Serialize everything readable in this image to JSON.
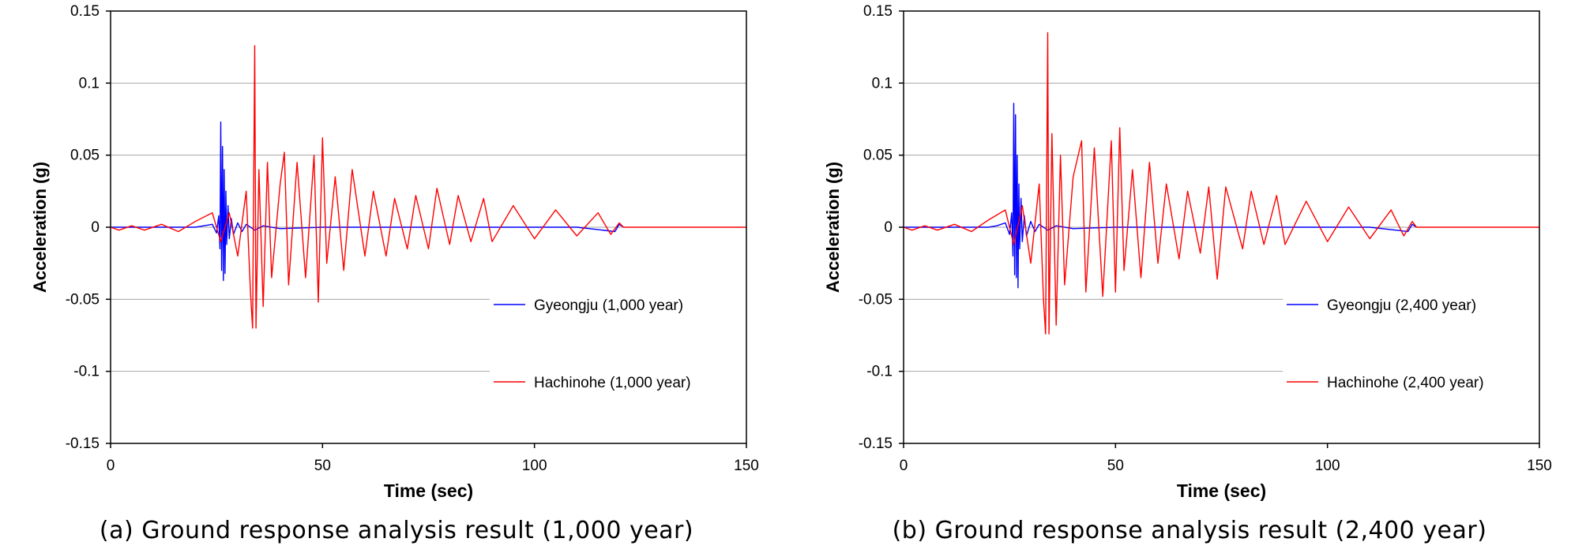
{
  "chart_data": [
    {
      "type": "line",
      "xlabel": "Time (sec)",
      "ylabel": "Acceleration (g)",
      "xlim": [
        0,
        150
      ],
      "ylim": [
        -0.15,
        0.15
      ],
      "x_ticks": [
        "0",
        "50",
        "100",
        "150"
      ],
      "y_ticks": [
        "0.15",
        "0.1",
        "0.05",
        "0",
        "-0.05",
        "-0.1",
        "-0.15"
      ],
      "grid": "horizontal",
      "legend_position": "bottom-right",
      "caption": "(a) Ground response analysis result (1,000 year)",
      "series": [
        {
          "name": "Gyeongju (1,000 year)",
          "color": "#0000ff",
          "points": [
            [
              0,
              0
            ],
            [
              5,
              0
            ],
            [
              10,
              0
            ],
            [
              15,
              0
            ],
            [
              20,
              0
            ],
            [
              22,
              0.001
            ],
            [
              24,
              0.002
            ],
            [
              25,
              -0.004
            ],
            [
              25.5,
              0.008
            ],
            [
              25.8,
              -0.015
            ],
            [
              26,
              0.073
            ],
            [
              26.2,
              -0.03
            ],
            [
              26.4,
              0.056
            ],
            [
              26.6,
              -0.037
            ],
            [
              26.8,
              0.04
            ],
            [
              27,
              -0.032
            ],
            [
              27.2,
              0.025
            ],
            [
              27.4,
              -0.012
            ],
            [
              27.7,
              0.015
            ],
            [
              28,
              -0.008
            ],
            [
              28.5,
              0.006
            ],
            [
              29,
              -0.005
            ],
            [
              30,
              0.003
            ],
            [
              31,
              -0.003
            ],
            [
              32,
              0.002
            ],
            [
              34,
              -0.002
            ],
            [
              36,
              0.001
            ],
            [
              40,
              -0.001
            ],
            [
              50,
              0
            ],
            [
              70,
              0
            ],
            [
              90,
              0
            ],
            [
              110,
              0
            ],
            [
              119,
              -0.003
            ],
            [
              120,
              0.002
            ],
            [
              121,
              0
            ]
          ]
        },
        {
          "name": "Hachinohe (1,000 year)",
          "color": "#ff0000",
          "points": [
            [
              0,
              0
            ],
            [
              2,
              -0.002
            ],
            [
              5,
              0.001
            ],
            [
              8,
              -0.002
            ],
            [
              12,
              0.002
            ],
            [
              16,
              -0.003
            ],
            [
              20,
              0.004
            ],
            [
              24,
              0.01
            ],
            [
              26,
              -0.01
            ],
            [
              28,
              0.01
            ],
            [
              30,
              -0.02
            ],
            [
              32,
              0.025
            ],
            [
              33,
              -0.045
            ],
            [
              33.5,
              -0.07
            ],
            [
              34,
              0.126
            ],
            [
              34.3,
              -0.07
            ],
            [
              35,
              0.04
            ],
            [
              36,
              -0.055
            ],
            [
              37,
              0.045
            ],
            [
              38,
              -0.035
            ],
            [
              40,
              0.03
            ],
            [
              41,
              0.052
            ],
            [
              42,
              -0.04
            ],
            [
              44,
              0.045
            ],
            [
              46,
              -0.035
            ],
            [
              48,
              0.05
            ],
            [
              49,
              -0.052
            ],
            [
              50,
              0.062
            ],
            [
              51,
              -0.025
            ],
            [
              53,
              0.035
            ],
            [
              55,
              -0.03
            ],
            [
              57,
              0.04
            ],
            [
              60,
              -0.02
            ],
            [
              62,
              0.025
            ],
            [
              65,
              -0.02
            ],
            [
              67,
              0.02
            ],
            [
              70,
              -0.015
            ],
            [
              72,
              0.022
            ],
            [
              75,
              -0.015
            ],
            [
              77,
              0.027
            ],
            [
              80,
              -0.012
            ],
            [
              82,
              0.022
            ],
            [
              85,
              -0.01
            ],
            [
              88,
              0.02
            ],
            [
              90,
              -0.01
            ],
            [
              95,
              0.015
            ],
            [
              100,
              -0.008
            ],
            [
              105,
              0.012
            ],
            [
              110,
              -0.006
            ],
            [
              115,
              0.01
            ],
            [
              118,
              -0.005
            ],
            [
              120,
              0.003
            ],
            [
              121,
              0
            ],
            [
              150,
              0
            ]
          ]
        }
      ]
    },
    {
      "type": "line",
      "xlabel": "Time (sec)",
      "ylabel": "Acceleration (g)",
      "xlim": [
        0,
        150
      ],
      "ylim": [
        -0.15,
        0.15
      ],
      "x_ticks": [
        "0",
        "50",
        "100",
        "150"
      ],
      "y_ticks": [
        "0.15",
        "0.1",
        "0.05",
        "0",
        "-0.05",
        "-0.1",
        "-0.15"
      ],
      "grid": "horizontal",
      "legend_position": "bottom-right",
      "caption": "(b) Ground response analysis result (2,400 year)",
      "series": [
        {
          "name": "Gyeongju (2,400 year)",
          "color": "#0000ff",
          "points": [
            [
              0,
              0
            ],
            [
              5,
              0
            ],
            [
              10,
              0
            ],
            [
              15,
              0
            ],
            [
              20,
              0
            ],
            [
              22,
              0.001
            ],
            [
              24,
              0.003
            ],
            [
              25,
              -0.005
            ],
            [
              25.5,
              0.01
            ],
            [
              25.8,
              -0.02
            ],
            [
              26,
              0.086
            ],
            [
              26.2,
              -0.033
            ],
            [
              26.4,
              0.078
            ],
            [
              26.6,
              -0.035
            ],
            [
              26.8,
              0.05
            ],
            [
              27,
              -0.042
            ],
            [
              27.2,
              0.03
            ],
            [
              27.4,
              -0.015
            ],
            [
              27.7,
              0.02
            ],
            [
              28,
              -0.01
            ],
            [
              28.5,
              0.008
            ],
            [
              29,
              -0.006
            ],
            [
              30,
              0.004
            ],
            [
              31,
              -0.003
            ],
            [
              32,
              0.002
            ],
            [
              34,
              -0.002
            ],
            [
              36,
              0.001
            ],
            [
              40,
              -0.001
            ],
            [
              50,
              0
            ],
            [
              70,
              0
            ],
            [
              90,
              0
            ],
            [
              110,
              0
            ],
            [
              119,
              -0.003
            ],
            [
              120,
              0.002
            ],
            [
              121,
              0
            ]
          ]
        },
        {
          "name": "Hachinohe (2,400 year)",
          "color": "#ff0000",
          "points": [
            [
              0,
              0
            ],
            [
              2,
              -0.002
            ],
            [
              5,
              0.001
            ],
            [
              8,
              -0.002
            ],
            [
              12,
              0.002
            ],
            [
              16,
              -0.003
            ],
            [
              20,
              0.005
            ],
            [
              24,
              0.012
            ],
            [
              26,
              -0.012
            ],
            [
              28,
              0.015
            ],
            [
              30,
              -0.025
            ],
            [
              32,
              0.03
            ],
            [
              33,
              -0.05
            ],
            [
              33.5,
              -0.074
            ],
            [
              34,
              0.135
            ],
            [
              34.3,
              -0.074
            ],
            [
              35,
              0.065
            ],
            [
              36,
              -0.068
            ],
            [
              37,
              0.05
            ],
            [
              38,
              -0.04
            ],
            [
              40,
              0.035
            ],
            [
              42,
              0.06
            ],
            [
              43,
              -0.045
            ],
            [
              45,
              0.055
            ],
            [
              47,
              -0.048
            ],
            [
              49,
              0.06
            ],
            [
              50,
              -0.045
            ],
            [
              51,
              0.069
            ],
            [
              52,
              -0.03
            ],
            [
              54,
              0.04
            ],
            [
              56,
              -0.035
            ],
            [
              58,
              0.045
            ],
            [
              60,
              -0.025
            ],
            [
              62,
              0.03
            ],
            [
              65,
              -0.022
            ],
            [
              67,
              0.025
            ],
            [
              70,
              -0.018
            ],
            [
              72,
              0.028
            ],
            [
              74,
              -0.036
            ],
            [
              76,
              0.028
            ],
            [
              80,
              -0.015
            ],
            [
              82,
              0.025
            ],
            [
              85,
              -0.012
            ],
            [
              88,
              0.022
            ],
            [
              90,
              -0.012
            ],
            [
              95,
              0.018
            ],
            [
              100,
              -0.01
            ],
            [
              105,
              0.014
            ],
            [
              110,
              -0.008
            ],
            [
              115,
              0.012
            ],
            [
              118,
              -0.006
            ],
            [
              120,
              0.004
            ],
            [
              121,
              0
            ],
            [
              150,
              0
            ]
          ]
        }
      ]
    }
  ]
}
